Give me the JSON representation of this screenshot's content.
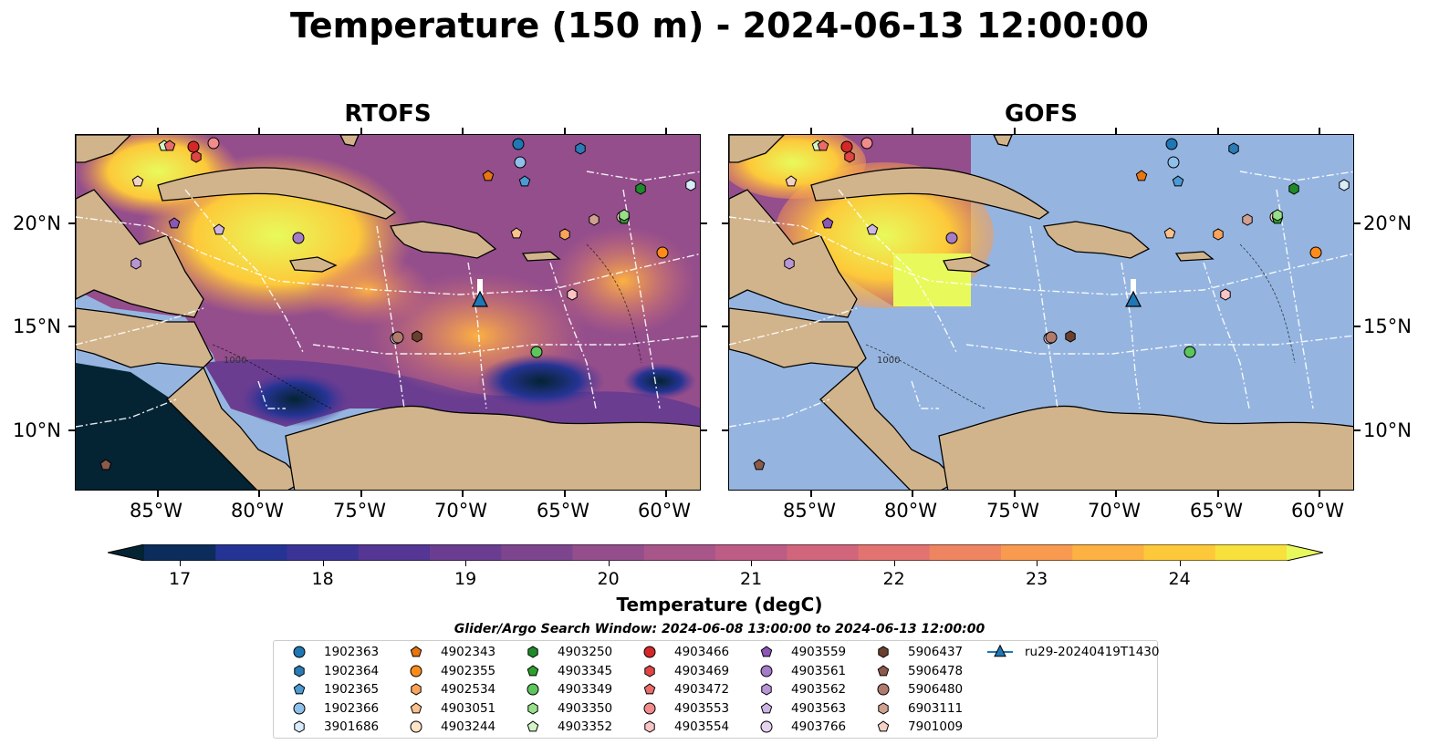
{
  "title": "Temperature (150 m) - 2024-06-13 12:00:00",
  "panels": [
    {
      "title": "RTOFS"
    },
    {
      "title": "GOFS"
    }
  ],
  "lon_ticks": [
    "85°W",
    "80°W",
    "75°W",
    "70°W",
    "65°W",
    "60°W"
  ],
  "lat_ticks": [
    "20°N",
    "15°N",
    "10°N"
  ],
  "isobath_labels": [
    "1000"
  ],
  "colorbar": {
    "label": "Temperature (degC)",
    "ticks": [
      "17",
      "18",
      "19",
      "20",
      "21",
      "22",
      "23",
      "24"
    ],
    "range": [
      16.75,
      24.75
    ],
    "extend": "both",
    "colormap": "thermal",
    "colors": [
      "#042333",
      "#0c2c5c",
      "#253494",
      "#3b3496",
      "#553694",
      "#6a3d91",
      "#7e458f",
      "#944e8c",
      "#a8558a",
      "#bd5c85",
      "#d0657c",
      "#e27370",
      "#ef8560",
      "#f89a50",
      "#fcb142",
      "#fdc93a",
      "#f8e13c",
      "#e8fa5b"
    ]
  },
  "search_window": "Glider/Argo Search Window: 2024-06-08 13:00:00 to 2024-06-13 12:00:00",
  "legend": [
    {
      "label": "1902363",
      "marker": "circle",
      "color": "#1f77b4"
    },
    {
      "label": "1902364",
      "marker": "hexagon",
      "color": "#2a7bb6"
    },
    {
      "label": "1902365",
      "marker": "pentagon",
      "color": "#4c9ad4"
    },
    {
      "label": "1902366",
      "marker": "circle",
      "color": "#8fc0ea"
    },
    {
      "label": "3901686",
      "marker": "hexagon",
      "color": "#d9ecf9"
    },
    {
      "label": "4902343",
      "marker": "pentagon",
      "color": "#e8750f"
    },
    {
      "label": "4902355",
      "marker": "circle",
      "color": "#ff8c1a"
    },
    {
      "label": "4902534",
      "marker": "hexagon",
      "color": "#f9a35b"
    },
    {
      "label": "4903051",
      "marker": "pentagon",
      "color": "#fbc08c"
    },
    {
      "label": "4903244",
      "marker": "circle",
      "color": "#fde3c8"
    },
    {
      "label": "4903250",
      "marker": "hexagon",
      "color": "#1f8a2a"
    },
    {
      "label": "4903345",
      "marker": "pentagon",
      "color": "#2ca02c"
    },
    {
      "label": "4903349",
      "marker": "circle",
      "color": "#5cc65c"
    },
    {
      "label": "4903350",
      "marker": "hexagon",
      "color": "#98df8a"
    },
    {
      "label": "4903352",
      "marker": "pentagon",
      "color": "#d3f5c6"
    },
    {
      "label": "4903466",
      "marker": "circle",
      "color": "#d62728"
    },
    {
      "label": "4903469",
      "marker": "hexagon",
      "color": "#e04545"
    },
    {
      "label": "4903472",
      "marker": "pentagon",
      "color": "#ea6b6b"
    },
    {
      "label": "4903553",
      "marker": "circle",
      "color": "#f28b8b"
    },
    {
      "label": "4903554",
      "marker": "hexagon",
      "color": "#fbc4c4"
    },
    {
      "label": "4903559",
      "marker": "pentagon",
      "color": "#8c56b5"
    },
    {
      "label": "4903561",
      "marker": "circle",
      "color": "#a47cc8"
    },
    {
      "label": "4903562",
      "marker": "hexagon",
      "color": "#b896d6"
    },
    {
      "label": "4903563",
      "marker": "pentagon",
      "color": "#cdb5e3"
    },
    {
      "label": "4903766",
      "marker": "circle",
      "color": "#e5d3f0"
    },
    {
      "label": "5906437",
      "marker": "hexagon",
      "color": "#6b3f2f"
    },
    {
      "label": "5906478",
      "marker": "pentagon",
      "color": "#8c5a4a"
    },
    {
      "label": "5906480",
      "marker": "circle",
      "color": "#b07b6c"
    },
    {
      "label": "6903111",
      "marker": "hexagon",
      "color": "#d0a090"
    },
    {
      "label": "7901009",
      "marker": "pentagon",
      "color": "#f3d2c4"
    },
    {
      "label": "ru29-20240419T1430",
      "marker": "triangle-line",
      "color": "#1f77b4"
    }
  ]
}
